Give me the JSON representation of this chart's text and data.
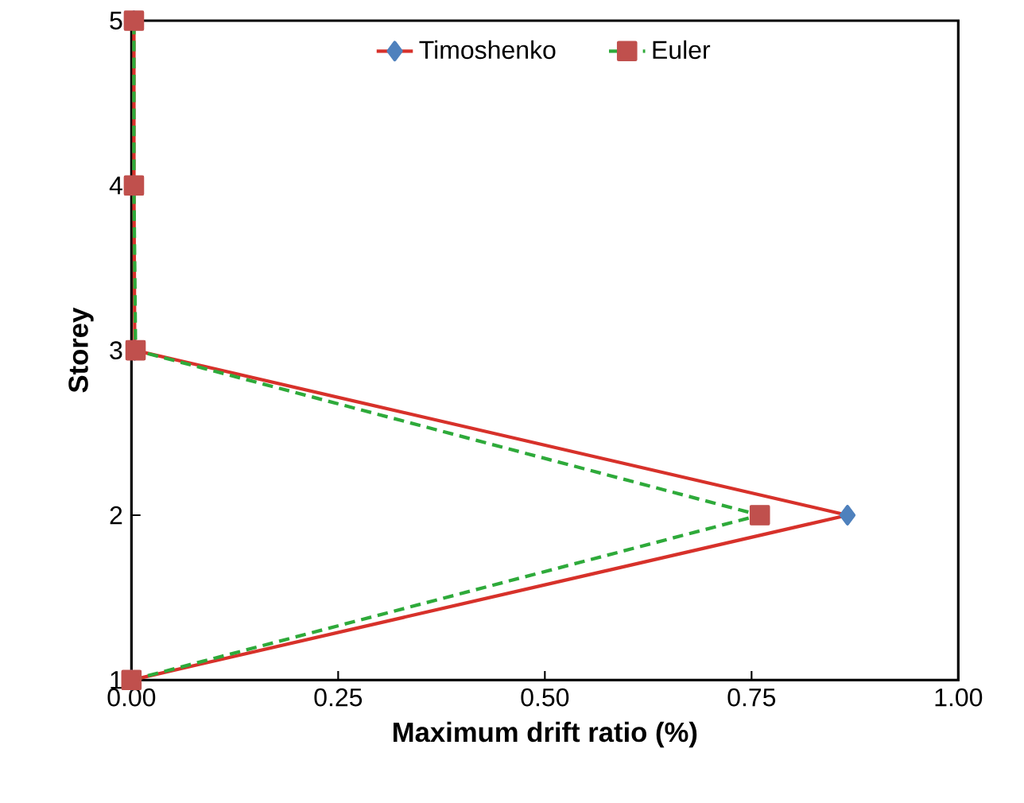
{
  "chart_data": {
    "type": "line",
    "xlabel": "Maximum drift ratio (%)",
    "ylabel": "Storey",
    "xlim": [
      0,
      1
    ],
    "xticks": [
      {
        "value": 0,
        "label": "0.00"
      },
      {
        "value": 0.25,
        "label": "0.25"
      },
      {
        "value": 0.5,
        "label": "0.50"
      },
      {
        "value": 0.75,
        "label": "0.75"
      },
      {
        "value": 1,
        "label": "1.00"
      }
    ],
    "ylim": [
      1,
      5
    ],
    "yticks": [
      1,
      2,
      3,
      4,
      5
    ],
    "legend": "top",
    "grid": false,
    "series": [
      {
        "name": "Timoshenko",
        "color": "#d7312a",
        "colors": [
          "#4f81bd",
          "#4f81bd",
          "#4f81bd",
          "#4f81bd",
          "#4f81bd"
        ],
        "marker": "diamond",
        "line_style": "solid",
        "x": [
          0,
          0.866,
          0.004,
          0.003,
          0.003
        ],
        "values": [
          1,
          2,
          3,
          4,
          5
        ]
      },
      {
        "name": "Euler",
        "color": "#2eaa3a",
        "colors": [
          "#c0504d",
          "#c0504d",
          "#c0504d",
          "#c0504d",
          "#c0504d"
        ],
        "marker": "square",
        "line_style": "dashed",
        "x": [
          0,
          0.76,
          0.005,
          0.003,
          0.003
        ],
        "values": [
          1,
          2,
          3,
          4,
          5
        ]
      }
    ]
  }
}
